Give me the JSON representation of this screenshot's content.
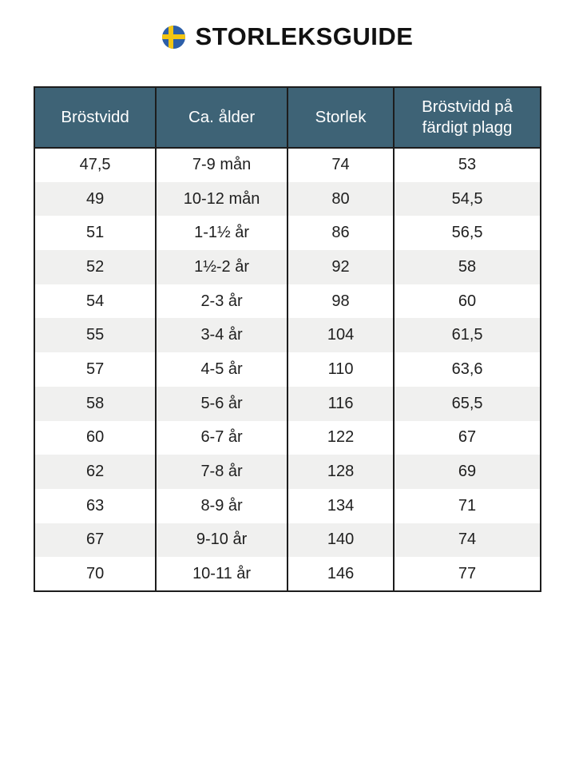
{
  "title": {
    "text": "STORLEKSGUIDE",
    "flag_icon": "swedish-flag-icon"
  },
  "colors": {
    "header_bg": "#3e6376",
    "header_text": "#ffffff",
    "row_alt_bg": "#f0f0ef",
    "border": "#1d1d1d",
    "title": "#111111",
    "flag_blue": "#2d5fa8",
    "flag_yellow": "#f3c613"
  },
  "table": {
    "columns": [
      "Bröstvidd",
      "Ca. ålder",
      "Storlek",
      "Bröstvidd på färdigt plagg"
    ],
    "rows": [
      [
        "47,5",
        "7-9 mån",
        "74",
        "53"
      ],
      [
        "49",
        "10-12 mån",
        "80",
        "54,5"
      ],
      [
        "51",
        "1-1½ år",
        "86",
        "56,5"
      ],
      [
        "52",
        "1½-2 år",
        "92",
        "58"
      ],
      [
        "54",
        "2-3 år",
        "98",
        "60"
      ],
      [
        "55",
        "3-4 år",
        "104",
        "61,5"
      ],
      [
        "57",
        "4-5 år",
        "110",
        "63,6"
      ],
      [
        "58",
        "5-6 år",
        "116",
        "65,5"
      ],
      [
        "60",
        "6-7 år",
        "122",
        "67"
      ],
      [
        "62",
        "7-8 år",
        "128",
        "69"
      ],
      [
        "63",
        "8-9 år",
        "134",
        "71"
      ],
      [
        "67",
        "9-10 år",
        "140",
        "74"
      ],
      [
        "70",
        "10-11 år",
        "146",
        "77"
      ]
    ]
  }
}
